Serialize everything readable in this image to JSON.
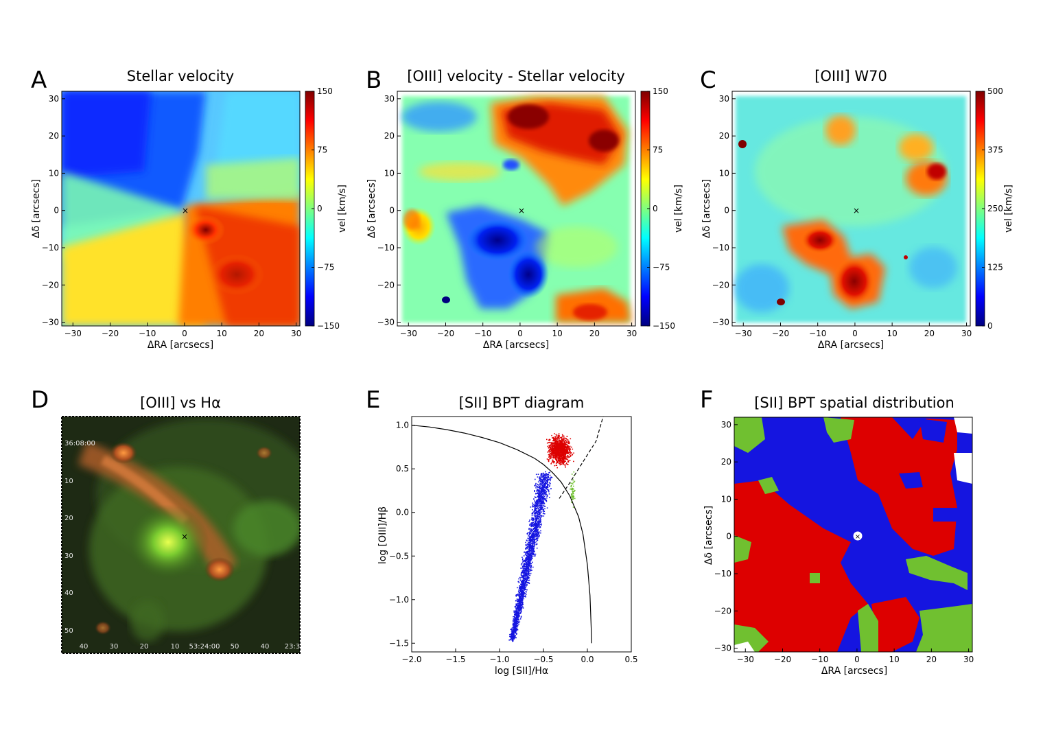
{
  "colors": {
    "jet_stops": [
      "#00007f",
      "#0000ff",
      "#007fff",
      "#00ffff",
      "#7fff7f",
      "#ffff00",
      "#ff7f00",
      "#ff0000",
      "#7f0000"
    ],
    "bpt_red": "#dd0000",
    "bpt_blue": "#1515e0",
    "bpt_green": "#70c030",
    "curve": "#000000"
  },
  "panels": {
    "A": {
      "label": "A",
      "title": "Stellar velocity",
      "xlabel": "ΔRA [arcsecs]",
      "ylabel": "Δδ [arcsecs]",
      "cbar_label": "vel [km/s]",
      "cbar_ticks": [
        "150",
        "75",
        "0",
        "−75",
        "−150"
      ]
    },
    "B": {
      "label": "B",
      "title": "[OIII] velocity - Stellar velocity",
      "xlabel": "ΔRA [arcsecs]",
      "ylabel": "Δδ [arcsecs]",
      "cbar_label": "vel [km/s]",
      "cbar_ticks": [
        "150",
        "75",
        "0",
        "−75",
        "−150"
      ]
    },
    "C": {
      "label": "C",
      "title": "[OIII] W70",
      "xlabel": "ΔRA [arcsecs]",
      "ylabel": "Δδ [arcsecs]",
      "cbar_label": "vel [km/s]",
      "cbar_ticks": [
        "500",
        "375",
        "250",
        "125",
        "0"
      ]
    },
    "D": {
      "label": "D",
      "title": "[OIII] vs Hα",
      "dec_ticks": [
        "36:08:00",
        "10",
        "20",
        "30",
        "40",
        "50"
      ],
      "ra_ticks": [
        "40",
        "30",
        "20",
        "10",
        "53:24:00",
        "50",
        "40",
        "23:3"
      ]
    },
    "E": {
      "label": "E",
      "title": "[SII] BPT diagram",
      "xlabel": "log [SII]/Hα",
      "ylabel": "log [OIII]/Hβ"
    },
    "F": {
      "label": "F",
      "title": "[SII] BPT spatial distribution",
      "xlabel": "ΔRA [arcsecs]",
      "ylabel": "Δδ [arcsecs]"
    }
  },
  "map_ticks": {
    "x": [
      "−30",
      "−20",
      "−10",
      "0",
      "10",
      "20",
      "30"
    ],
    "y": [
      "30",
      "20",
      "10",
      "0",
      "−10",
      "−20",
      "−30"
    ]
  },
  "chart_data": [
    {
      "type": "heatmap",
      "title": "Stellar velocity",
      "xlabel": "ΔRA [arcsecs]",
      "ylabel": "Δδ [arcsecs]",
      "xlim": [
        -33,
        31
      ],
      "ylim": [
        -31,
        32
      ],
      "colorbar": {
        "label": "vel [km/s]",
        "range": [
          -150,
          150
        ],
        "ticks": [
          150,
          75,
          0,
          -75,
          -150
        ]
      }
    },
    {
      "type": "heatmap",
      "title": "[OIII] velocity - Stellar velocity",
      "xlabel": "ΔRA [arcsecs]",
      "ylabel": "Δδ [arcsecs]",
      "xlim": [
        -33,
        31
      ],
      "ylim": [
        -31,
        32
      ],
      "colorbar": {
        "label": "vel [km/s]",
        "range": [
          -150,
          150
        ],
        "ticks": [
          150,
          75,
          0,
          -75,
          -150
        ]
      }
    },
    {
      "type": "heatmap",
      "title": "[OIII] W70",
      "xlabel": "ΔRA [arcsecs]",
      "ylabel": "Δδ [arcsecs]",
      "xlim": [
        -33,
        31
      ],
      "ylim": [
        -31,
        32
      ],
      "colorbar": {
        "label": "vel [km/s]",
        "range": [
          0,
          500
        ],
        "ticks": [
          500,
          375,
          250,
          125,
          0
        ]
      }
    },
    {
      "type": "scatter",
      "title": "[SII] BPT diagram",
      "xlabel": "log [SII]/Hα",
      "ylabel": "log [OIII]/Hβ",
      "xlim": [
        -2.0,
        0.5
      ],
      "ylim": [
        -1.6,
        1.1
      ],
      "xticks": [
        -2.0,
        -1.5,
        -1.0,
        -0.5,
        0.0,
        0.5
      ],
      "yticks": [
        1.0,
        0.5,
        0.0,
        -0.5,
        -1.0,
        -1.5
      ],
      "xtick_labels": [
        "−2.0",
        "−1.5",
        "−1.0",
        "−0.5",
        "0.0",
        "0.5"
      ],
      "ytick_labels": [
        "1.0",
        "0.5",
        "0.0",
        "−0.5",
        "−1.0",
        "−1.5"
      ],
      "curves": [
        {
          "style": "solid",
          "x": [
            -2.0,
            -1.8,
            -1.6,
            -1.4,
            -1.2,
            -1.0,
            -0.8,
            -0.6,
            -0.5,
            -0.4,
            -0.3,
            -0.2,
            -0.1,
            -0.05,
            0.0,
            0.03,
            0.05
          ],
          "y": [
            1.0,
            0.98,
            0.95,
            0.91,
            0.86,
            0.8,
            0.72,
            0.62,
            0.55,
            0.46,
            0.35,
            0.19,
            -0.05,
            -0.25,
            -0.6,
            -0.95,
            -1.5
          ]
        },
        {
          "style": "dashed",
          "x": [
            -0.32,
            -0.2,
            -0.1,
            0.0,
            0.1,
            0.18
          ],
          "y": [
            0.16,
            0.34,
            0.5,
            0.66,
            0.82,
            1.1
          ]
        }
      ],
      "series": [
        {
          "color": "#1515e0",
          "x": [
            -0.85,
            -0.8,
            -0.75,
            -0.7,
            -0.65,
            -0.6,
            -0.55,
            -0.5,
            -0.45,
            -0.4,
            -0.35
          ],
          "y": [
            -1.45,
            -1.2,
            -0.9,
            -0.6,
            -0.3,
            -0.05,
            0.15,
            0.3,
            0.4,
            0.45,
            0.3
          ]
        },
        {
          "color": "#dd0000",
          "x": [
            -0.5,
            -0.45,
            -0.4,
            -0.35,
            -0.3,
            -0.25,
            -0.2,
            -0.15,
            -0.1
          ],
          "y": [
            0.55,
            0.7,
            0.8,
            0.9,
            0.85,
            0.75,
            0.65,
            0.6,
            0.7
          ]
        },
        {
          "color": "#70c030",
          "x": [
            -0.2,
            -0.17,
            -0.15,
            -0.12,
            -0.1
          ],
          "y": [
            0.3,
            0.4,
            0.2,
            0.1,
            0.0
          ]
        }
      ]
    },
    {
      "type": "heatmap",
      "title": "[SII] BPT spatial distribution",
      "xlabel": "ΔRA [arcsecs]",
      "ylabel": "Δδ [arcsecs]",
      "xlim": [
        -33,
        31
      ],
      "ylim": [
        -31,
        32
      ]
    }
  ]
}
